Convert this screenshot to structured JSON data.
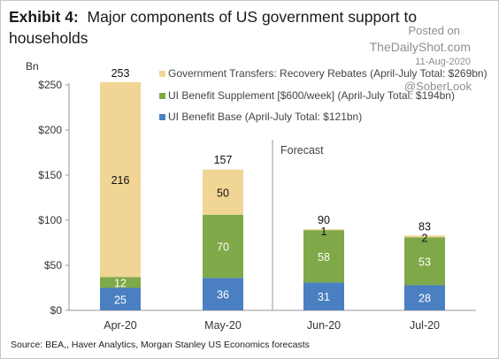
{
  "header": {
    "title_bold": "Exhibit 4:",
    "title_line1": "Major components of US government support to",
    "title_line2": "households"
  },
  "watermark": {
    "posted_on": "Posted on",
    "site": "TheDailyShot.com",
    "date": "11-Aug-2020",
    "handle": "@SoberLook"
  },
  "footer": {
    "source": "Source: BEA,, Haver Analytics, Morgan Stanley US Economics forecasts"
  },
  "chart_data": {
    "type": "bar",
    "stacked": true,
    "ylabel": "Bn",
    "ylim": [
      0,
      250
    ],
    "yticks": [
      0,
      50,
      100,
      150,
      200,
      250
    ],
    "ytick_labels": [
      "$0",
      "$50",
      "$100",
      "$150",
      "$200",
      "$250"
    ],
    "categories": [
      "Apr-20",
      "May-20",
      "Jun-20",
      "Jul-20"
    ],
    "totals": [
      253,
      157,
      90,
      83
    ],
    "series": [
      {
        "name": "UI Benefit Base (April-July Total: $121bn)",
        "values": [
          25,
          36,
          31,
          28
        ],
        "color": "#4a7fc1"
      },
      {
        "name": "UI Benefit Supplement [$600/week] (April-July Total: $194bn)",
        "values": [
          12,
          70,
          58,
          53
        ],
        "color": "#7fa848"
      },
      {
        "name": "Government Transfers: Recovery Rebates (April-July Total: $269bn)",
        "values": [
          216,
          50,
          1,
          2
        ],
        "color": "#f1d594"
      }
    ],
    "annotation": "Forecast",
    "grid": false,
    "legend_position": "top-right"
  }
}
